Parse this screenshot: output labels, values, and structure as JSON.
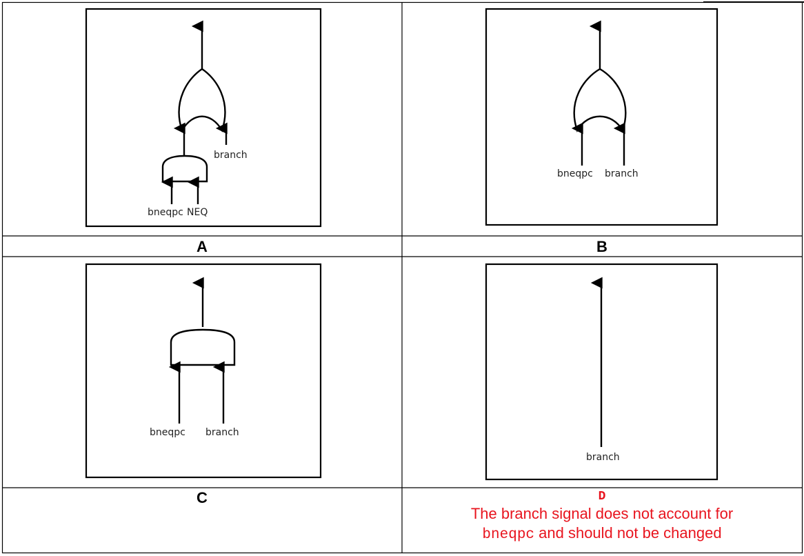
{
  "panels": {
    "A": {
      "letter": "A",
      "labels": {
        "bneqpc": "bneqpc",
        "neq": "NEQ",
        "branch": "branch"
      }
    },
    "B": {
      "letter": "B",
      "labels": {
        "bneqpc": "bneqpc",
        "branch": "branch"
      }
    },
    "C": {
      "letter": "C",
      "labels": {
        "bneqpc": "bneqpc",
        "branch": "branch"
      }
    },
    "D": {
      "letter": "D",
      "labels": {
        "branch": "branch"
      },
      "note_line1": "The branch signal does not account for",
      "note_code": "bneqpc",
      "note_line2_rest": " and should not be changed"
    }
  },
  "colors": {
    "answer_text": "#e8141e",
    "lines": "#000000"
  }
}
